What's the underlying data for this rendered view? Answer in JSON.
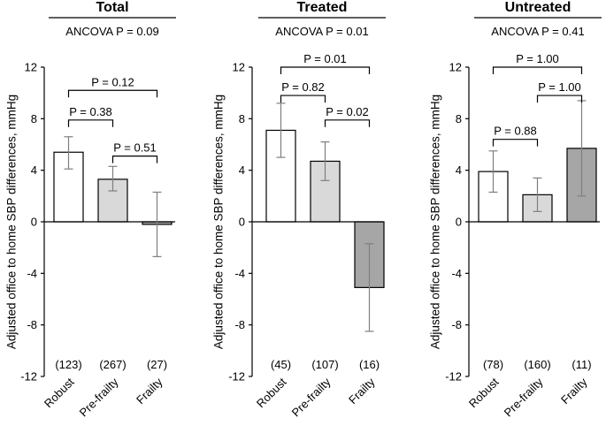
{
  "chart_data": [
    {
      "type": "bar",
      "title": "Total",
      "subtitle": "ANCOVA P = 0.09",
      "ylabel": "Adjusted office to home SBP differences, mmHg",
      "ylim": [
        -12,
        12
      ],
      "yticks": [
        "12",
        "8",
        "4",
        "0",
        "-4",
        "-8",
        "-12"
      ],
      "categories": [
        "Robust",
        "Pre-frailty",
        "Frailty"
      ],
      "values": [
        5.4,
        3.3,
        -0.2
      ],
      "error_low": [
        4.1,
        2.4,
        -2.7
      ],
      "error_high": [
        6.6,
        4.3,
        2.3
      ],
      "counts": [
        "(123)",
        "(267)",
        "(27)"
      ],
      "colors": [
        "#ffffff",
        "#d9d9d9",
        "#a6a6a6"
      ],
      "comparisons": [
        {
          "from": 0,
          "to": 2,
          "label": "P = 0.12",
          "y": 10.2
        },
        {
          "from": 0,
          "to": 1,
          "label": "P = 0.38",
          "y": 7.9
        },
        {
          "from": 1,
          "to": 2,
          "label": "P = 0.51",
          "y": 5.1
        }
      ]
    },
    {
      "type": "bar",
      "title": "Treated",
      "subtitle": "ANCOVA P = 0.01",
      "ylabel": "Adjusted office to home SBP differences, mmHg",
      "ylim": [
        -12,
        12
      ],
      "yticks": [
        "12",
        "8",
        "4",
        "0",
        "-4",
        "-8",
        "-12"
      ],
      "categories": [
        "Robust",
        "Pre-frailty",
        "Frailty"
      ],
      "values": [
        7.1,
        4.7,
        -5.1
      ],
      "error_low": [
        5.0,
        3.2,
        -8.5
      ],
      "error_high": [
        9.2,
        6.2,
        -1.7
      ],
      "counts": [
        "(45)",
        "(107)",
        "(16)"
      ],
      "colors": [
        "#ffffff",
        "#d9d9d9",
        "#a6a6a6"
      ],
      "comparisons": [
        {
          "from": 0,
          "to": 2,
          "label": "P = 0.01",
          "y": 12.0
        },
        {
          "from": 0,
          "to": 1,
          "label": "P = 0.82",
          "y": 9.8
        },
        {
          "from": 1,
          "to": 2,
          "label": "P = 0.02",
          "y": 7.9
        }
      ]
    },
    {
      "type": "bar",
      "title": "Untreated",
      "subtitle": "ANCOVA P = 0.41",
      "ylabel": "Adjusted office to home SBP differences, mmHg",
      "ylim": [
        -12,
        12
      ],
      "yticks": [
        "12",
        "8",
        "4",
        "0",
        "-4",
        "-8",
        "-12"
      ],
      "categories": [
        "Robust",
        "Pre-frailty",
        "Frailty"
      ],
      "values": [
        3.9,
        2.1,
        5.7
      ],
      "error_low": [
        2.3,
        0.8,
        2.0
      ],
      "error_high": [
        5.5,
        3.4,
        9.4
      ],
      "counts": [
        "(78)",
        "(160)",
        "(11)"
      ],
      "colors": [
        "#ffffff",
        "#d9d9d9",
        "#a6a6a6"
      ],
      "comparisons": [
        {
          "from": 0,
          "to": 2,
          "label": "P = 1.00",
          "y": 12.0
        },
        {
          "from": 1,
          "to": 2,
          "label": "P = 1.00",
          "y": 9.8
        },
        {
          "from": 0,
          "to": 1,
          "label": "P = 0.88",
          "y": 6.4
        }
      ]
    }
  ]
}
